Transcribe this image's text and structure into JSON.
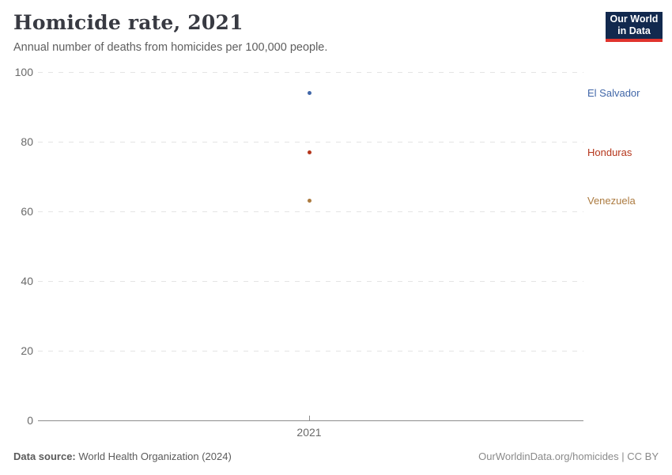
{
  "header": {
    "title": "Homicide rate, 2021",
    "subtitle": "Annual number of deaths from homicides per 100,000 people.",
    "logo": {
      "line1": "Our World",
      "line2": "in Data",
      "bg_color": "#12294e",
      "accent_color": "#e0342d"
    }
  },
  "chart_data": {
    "type": "scatter",
    "x": [
      2021
    ],
    "xtick_label": "2021",
    "yticks": [
      "100",
      "80",
      "60",
      "40",
      "20",
      "0"
    ],
    "ylim": [
      0,
      100
    ],
    "grid": true,
    "legend_position": "right-entity-labels",
    "series": [
      {
        "name": "El Salvador",
        "values": [
          94
        ],
        "color": "#4167a8"
      },
      {
        "name": "Honduras",
        "values": [
          77
        ],
        "color": "#b5361c"
      },
      {
        "name": "Venezuela",
        "values": [
          63
        ],
        "color": "#ac7b40"
      }
    ]
  },
  "footer": {
    "source_label": "Data source:",
    "source_value": " World Health Organization (2024)",
    "credit": "OurWorldinData.org/homicides | CC BY"
  }
}
